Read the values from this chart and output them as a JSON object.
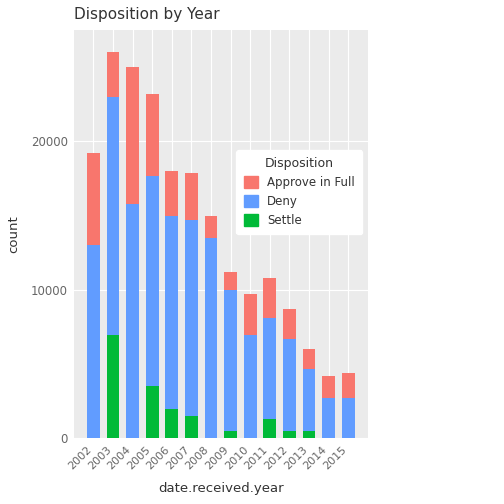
{
  "years": [
    2002,
    2003,
    2004,
    2005,
    2006,
    2007,
    2008,
    2009,
    2010,
    2011,
    2012,
    2013,
    2014,
    2015
  ],
  "settle": [
    0,
    7000,
    0,
    3500,
    2000,
    1500,
    0,
    500,
    0,
    1300,
    500,
    500,
    0,
    0
  ],
  "deny": [
    13000,
    16000,
    15800,
    14200,
    13000,
    13200,
    13500,
    9500,
    7000,
    6800,
    6200,
    4200,
    2700,
    2700
  ],
  "approve_in_full": [
    6200,
    3000,
    9200,
    5500,
    3000,
    3200,
    1500,
    1200,
    2700,
    2700,
    2000,
    1300,
    1500,
    1700
  ],
  "colors": {
    "Approve in Full": "#F8766D",
    "Deny": "#619CFF",
    "Settle": "#00BA38"
  },
  "title": "Disposition by Year",
  "xlabel": "date.received.year",
  "ylabel": "count",
  "ylim": [
    0,
    27500
  ],
  "yticks": [
    0,
    10000,
    20000
  ],
  "ytick_labels": [
    "0",
    "10000",
    "20000"
  ],
  "bg_color": "#EBEBEB",
  "grid_color": "#FFFFFF",
  "panel_bg": "#EBEBEB"
}
